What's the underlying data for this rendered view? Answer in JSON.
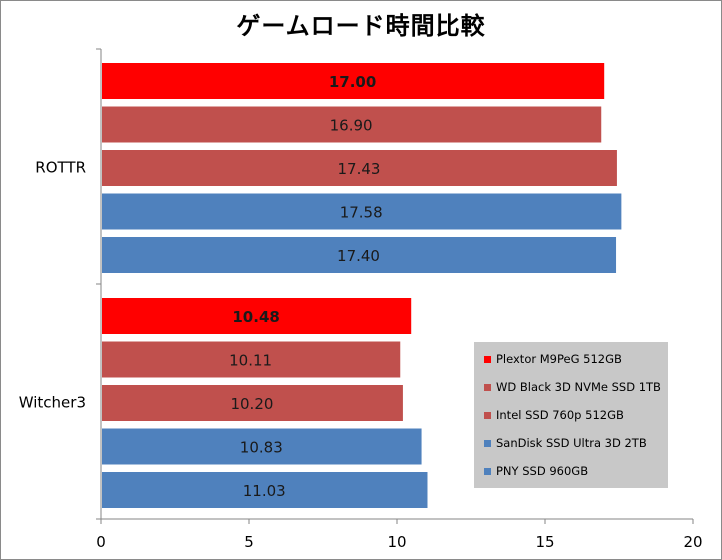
{
  "chart_data": {
    "type": "bar",
    "orientation": "horizontal",
    "title": "ゲームロード時間比較",
    "categories": [
      "ROTTR",
      "Witcher3"
    ],
    "series": [
      {
        "name": "Plextor M9PeG 512GB",
        "color": "#ff0000",
        "bold": true,
        "values": [
          17.0,
          10.48
        ],
        "labels": [
          "17.00",
          "10.48"
        ]
      },
      {
        "name": "WD Black 3D NVMe SSD 1TB",
        "color": "#c0504d",
        "bold": false,
        "values": [
          16.9,
          10.11
        ],
        "labels": [
          "16.90",
          "10.11"
        ]
      },
      {
        "name": "Intel SSD 760p 512GB",
        "color": "#c0504d",
        "bold": false,
        "values": [
          17.43,
          10.2
        ],
        "labels": [
          "17.43",
          "10.20"
        ]
      },
      {
        "name": "SanDisk SSD Ultra 3D 2TB",
        "color": "#4f81bd",
        "bold": false,
        "values": [
          17.58,
          10.83
        ],
        "labels": [
          "17.58",
          "10.83"
        ]
      },
      {
        "name": "PNY SSD 960GB",
        "color": "#4f81bd",
        "bold": false,
        "values": [
          17.4,
          11.03
        ],
        "labels": [
          "17.40",
          "11.03"
        ]
      }
    ],
    "xlim": [
      0,
      20
    ],
    "xticks": [
      "0",
      "5",
      "10",
      "15",
      "20"
    ],
    "grid": false,
    "legend_position": "bottom-right"
  }
}
